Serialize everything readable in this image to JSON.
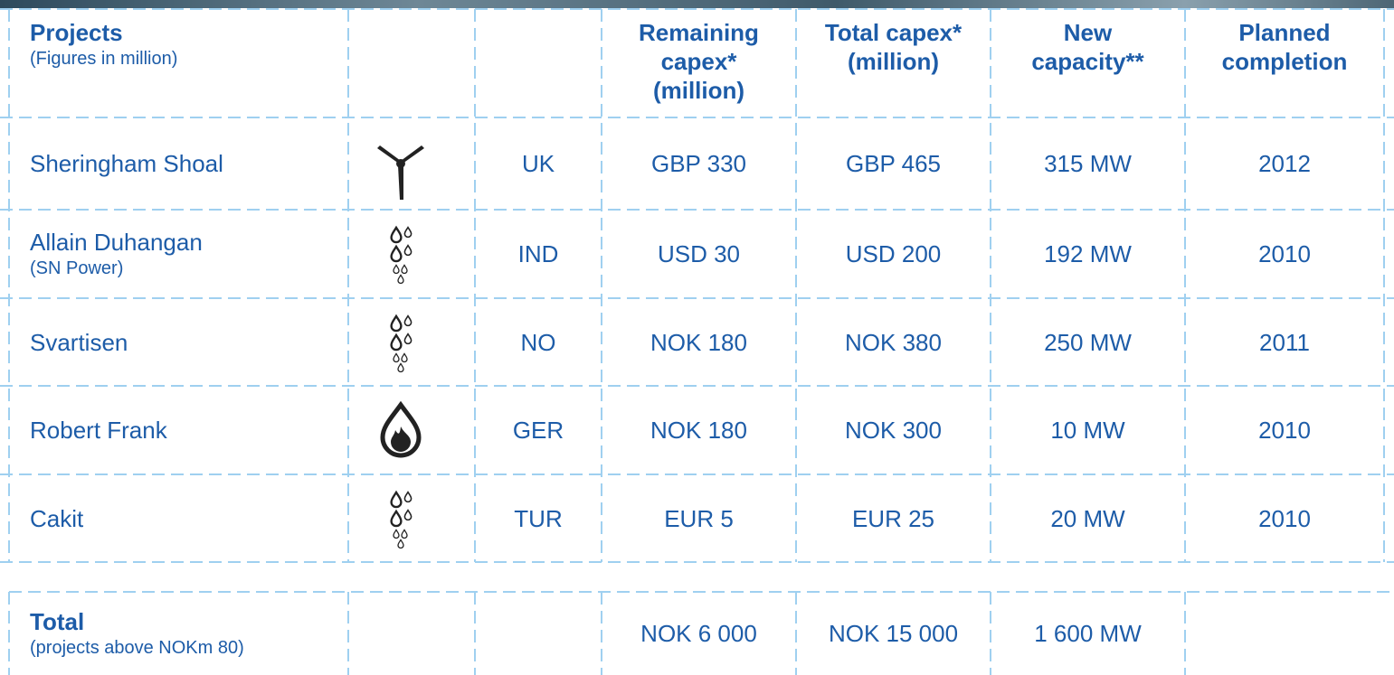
{
  "header": {
    "title": "Projects",
    "subtitle": "(Figures in million)",
    "columns": [
      [
        "Remaining",
        "capex*",
        "(million)"
      ],
      [
        "Total capex*",
        "(million)"
      ],
      [
        "New",
        "capacity**"
      ],
      [
        "Planned",
        "completion"
      ]
    ]
  },
  "rows": [
    {
      "name": "Sheringham Shoal",
      "cells": [
        "UK",
        "GBP 330",
        "GBP 465",
        "315 MW",
        "2012"
      ]
    },
    {
      "name": "Allain Duhangan",
      "note": "(SN Power)",
      "cells": [
        "IND",
        "USD 30",
        "USD 200",
        "192 MW",
        "2010"
      ]
    },
    {
      "name": "Svartisen",
      "cells": [
        "NO",
        "NOK 180",
        "NOK 380",
        "250 MW",
        "2011"
      ]
    },
    {
      "name": "Robert Frank",
      "cells": [
        "GER",
        "NOK 180",
        "NOK 300",
        "10 MW",
        "2010"
      ]
    },
    {
      "name": "Cakit",
      "cells": [
        "TUR",
        "EUR 5",
        "EUR 25",
        "20 MW",
        "2010"
      ]
    }
  ],
  "total": {
    "label": "Total",
    "note": "(projects above NOKm 80)",
    "cells": [
      "NOK 6 000",
      "NOK 15 000",
      "1 600 MW"
    ]
  }
}
